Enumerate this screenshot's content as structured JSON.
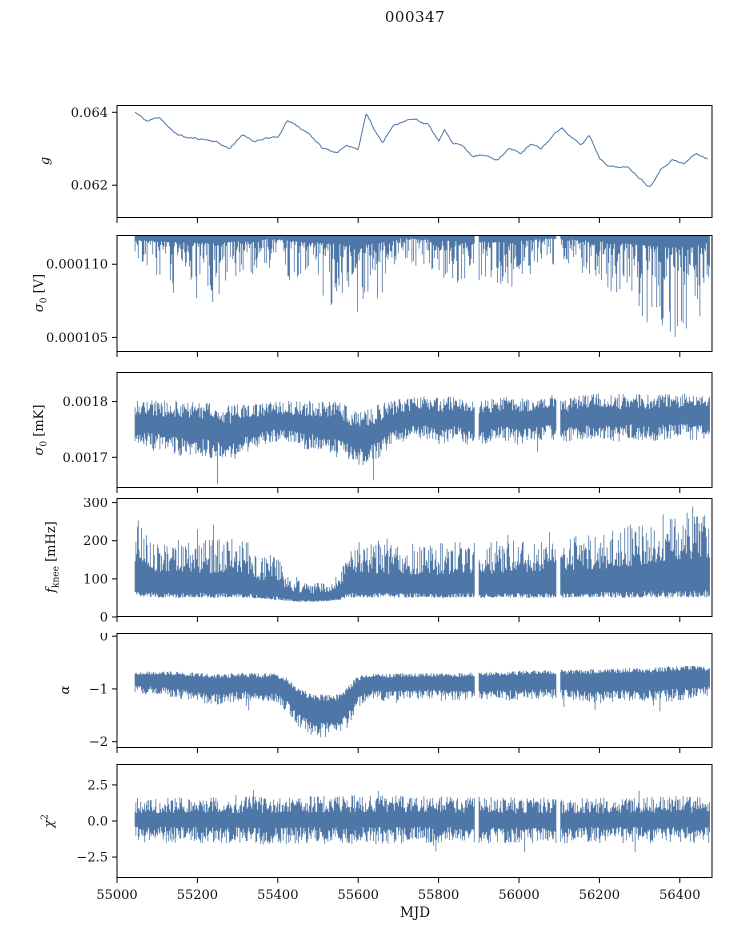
{
  "chart_data": {
    "type": "line",
    "title": "000347",
    "xlabel": "MJD",
    "line_color": "#4e76a6",
    "axis_color": "#000000",
    "xlim": [
      55000,
      56480
    ],
    "xticks": [
      {
        "v": 55000,
        "label": "55000"
      },
      {
        "v": 55200,
        "label": "55200"
      },
      {
        "v": 55400,
        "label": "55400"
      },
      {
        "v": 55600,
        "label": "55600"
      },
      {
        "v": 55800,
        "label": "55800"
      },
      {
        "v": 56000,
        "label": "56000"
      },
      {
        "v": 56200,
        "label": "56200"
      },
      {
        "v": 56400,
        "label": "56400"
      }
    ],
    "gaps": [
      [
        55890,
        55900
      ],
      [
        56092,
        56102
      ]
    ],
    "panels": [
      {
        "id": "g",
        "ylabel_main": "g",
        "ylabel_sub": "",
        "ylabel_sup": "",
        "ylabel_unit": "",
        "ylim": [
          0.0611,
          0.0642
        ],
        "yticks": [
          {
            "v": 0.062,
            "label": "0.062"
          },
          {
            "v": 0.064,
            "label": "0.064"
          }
        ],
        "use_gaps": false,
        "series": {
          "kind": "line",
          "seed": 11,
          "noise": 5e-05,
          "x": [
            55045,
            55075,
            55105,
            55140,
            55175,
            55210,
            55245,
            55280,
            55310,
            55340,
            55370,
            55400,
            55425,
            55450,
            55480,
            55510,
            55545,
            55575,
            55600,
            55620,
            55640,
            55660,
            55685,
            55715,
            55745,
            55775,
            55800,
            55815,
            55835,
            55860,
            55885,
            55915,
            55945,
            55975,
            56005,
            56030,
            56055,
            56080,
            56105,
            56130,
            56155,
            56175,
            56200,
            56225,
            56250,
            56275,
            56300,
            56325,
            56350,
            56380,
            56410,
            56440,
            56470
          ],
          "y": [
            0.064,
            0.06375,
            0.06388,
            0.06345,
            0.0633,
            0.06327,
            0.0632,
            0.063,
            0.06338,
            0.0632,
            0.0633,
            0.0633,
            0.06378,
            0.0636,
            0.0634,
            0.06302,
            0.0629,
            0.06308,
            0.063,
            0.06398,
            0.06352,
            0.06318,
            0.0636,
            0.06378,
            0.0638,
            0.06365,
            0.0632,
            0.0635,
            0.06318,
            0.06308,
            0.0628,
            0.06282,
            0.0627,
            0.063,
            0.06288,
            0.06312,
            0.063,
            0.0633,
            0.0636,
            0.0633,
            0.0631,
            0.06338,
            0.06275,
            0.06252,
            0.0625,
            0.06247,
            0.0622,
            0.06195,
            0.0624,
            0.0627,
            0.06258,
            0.06288,
            0.0627
          ]
        }
      },
      {
        "id": "sigma0_V",
        "ylabel_main": "σ",
        "ylabel_sub": "0",
        "ylabel_sup": "",
        "ylabel_unit": " [V]",
        "ylim": [
          0.000104,
          0.000112
        ],
        "yticks": [
          {
            "v": 0.000105,
            "label": "0.000105"
          },
          {
            "v": 0.00011,
            "label": "0.000110"
          }
        ],
        "use_gaps": true,
        "series": {
          "kind": "top_spikes",
          "seed": 22,
          "top": 0.000112,
          "depth_bias": [
            0.12,
            0.88,
            2.4
          ],
          "spike_prob": 0.015,
          "spike_scale": 0.15,
          "x": [
            55045,
            55090,
            55140,
            55190,
            55240,
            55290,
            55330,
            55370,
            55410,
            55440,
            55470,
            55510,
            55560,
            55610,
            55650,
            55690,
            55730,
            55770,
            55810,
            55850,
            55890,
            55905,
            55950,
            56000,
            56040,
            56080,
            56110,
            56150,
            56190,
            56230,
            56270,
            56310,
            56350,
            56390,
            56420,
            56450,
            56475
          ],
          "min": [
            0.0001092,
            0.0001087,
            0.000108,
            0.0001076,
            0.0001073,
            0.0001082,
            0.000109,
            0.0001097,
            0.0001094,
            0.0001085,
            0.0001079,
            0.0001074,
            0.0001069,
            0.0001067,
            0.0001073,
            0.0001098,
            0.0001101,
            0.0001095,
            0.0001088,
            0.0001085,
            0.0001082,
            0.0001082,
            0.000108,
            0.0001085,
            0.0001094,
            0.00011,
            0.0001098,
            0.0001091,
            0.0001086,
            0.000108,
            0.0001072,
            0.0001062,
            0.0001053,
            0.0001049,
            0.0001052,
            0.0001063,
            0.0001078
          ]
        }
      },
      {
        "id": "sigma0_mK",
        "ylabel_main": "σ",
        "ylabel_sub": "0",
        "ylabel_sup": "",
        "ylabel_unit": " [mK]",
        "ylim": [
          0.001645,
          0.001853
        ],
        "yticks": [
          {
            "v": 0.0017,
            "label": "0.0017"
          },
          {
            "v": 0.0018,
            "label": "0.0018"
          }
        ],
        "use_gaps": true,
        "series": {
          "kind": "band",
          "seed": 33,
          "hi_bias": [
            0.35,
            0.65,
            1.1
          ],
          "lo_bias": [
            0.35,
            0.65,
            1.1
          ],
          "spike_prob": 0.02,
          "spike_scale": 0.9,
          "spike_dir": -1,
          "x": [
            55045,
            55100,
            55160,
            55220,
            55280,
            55320,
            55360,
            55420,
            55470,
            55520,
            55560,
            55600,
            55640,
            55680,
            55720,
            55760,
            55800,
            55840,
            55880,
            55920,
            55960,
            56000,
            56040,
            56080,
            56120,
            56160,
            56200,
            56240,
            56280,
            56320,
            56360,
            56400,
            56440,
            56475
          ],
          "center": [
            0.001762,
            0.001758,
            0.001752,
            0.00175,
            0.001742,
            0.001752,
            0.00176,
            0.001765,
            0.001758,
            0.001755,
            0.001748,
            0.001732,
            0.001742,
            0.00176,
            0.001768,
            0.001772,
            0.001765,
            0.00177,
            0.001762,
            0.001765,
            0.00177,
            0.001765,
            0.00177,
            0.001772,
            0.001768,
            0.001772,
            0.001775,
            0.00177,
            0.001774,
            0.00177,
            0.001773,
            0.001775,
            0.001772,
            0.001774
          ],
          "amp": [
            4e-05,
            4.4e-05,
            5e-05,
            5e-05,
            5.2e-05,
            4.4e-05,
            3.8e-05,
            3.6e-05,
            4.4e-05,
            4.8e-05,
            5.2e-05,
            5e-05,
            5e-05,
            4.2e-05,
            3.8e-05,
            3.8e-05,
            4.2e-05,
            4e-05,
            4.2e-05,
            4e-05,
            4e-05,
            4.4e-05,
            4e-05,
            4e-05,
            4e-05,
            4.2e-05,
            4e-05,
            4.4e-05,
            4e-05,
            4.4e-05,
            4.2e-05,
            4e-05,
            4.2e-05,
            4e-05
          ]
        }
      },
      {
        "id": "fknee",
        "ylabel_main": "f",
        "ylabel_sub": "knee",
        "ylabel_sup": "",
        "ylabel_unit": " [mHz]",
        "ylim": [
          0,
          312
        ],
        "yticks": [
          {
            "v": 0,
            "label": "0"
          },
          {
            "v": 100,
            "label": "100"
          },
          {
            "v": 200,
            "label": "200"
          },
          {
            "v": 300,
            "label": "300"
          }
        ],
        "use_gaps": true,
        "series": {
          "kind": "range_band",
          "seed": 44,
          "lo_bias": [
            0,
            0.08,
            2
          ],
          "hi_bias": [
            0.42,
            0.58,
            1.35
          ],
          "spike_prob": 0.035,
          "spike_scale": 0.45,
          "x": [
            55045,
            55090,
            55140,
            55190,
            55240,
            55290,
            55330,
            55360,
            55395,
            55425,
            55455,
            55490,
            55525,
            55555,
            55575,
            55610,
            55660,
            55710,
            55760,
            55810,
            55860,
            55910,
            55960,
            56010,
            56060,
            56110,
            56160,
            56210,
            56260,
            56310,
            56360,
            56410,
            56450,
            56475
          ],
          "low": [
            55,
            52,
            50,
            52,
            50,
            52,
            50,
            48,
            45,
            42,
            40,
            40,
            42,
            45,
            52,
            50,
            52,
            50,
            52,
            50,
            52,
            50,
            52,
            50,
            52,
            50,
            52,
            52,
            50,
            52,
            50,
            52,
            52,
            52
          ],
          "high": [
            250,
            205,
            210,
            200,
            205,
            210,
            195,
            160,
            165,
            110,
            95,
            90,
            92,
            120,
            205,
            200,
            195,
            200,
            190,
            195,
            200,
            195,
            205,
            215,
            205,
            215,
            220,
            230,
            240,
            255,
            270,
            285,
            295,
            295
          ]
        }
      },
      {
        "id": "alpha",
        "ylabel_main": "α",
        "ylabel_sub": "",
        "ylabel_sup": "",
        "ylabel_unit": "",
        "ylim": [
          -2.12,
          0.06
        ],
        "yticks": [
          {
            "v": -2,
            "label": "−2"
          },
          {
            "v": -1,
            "label": "−1"
          },
          {
            "v": 0,
            "label": "0"
          }
        ],
        "use_gaps": true,
        "series": {
          "kind": "band",
          "seed": 55,
          "hi_bias": [
            0.7,
            0.3,
            1.0
          ],
          "lo_bias": [
            0.3,
            0.7,
            1.3
          ],
          "spike_prob": 0.03,
          "spike_scale": 0.8,
          "spike_dir": -1,
          "x": [
            55045,
            55120,
            55200,
            55260,
            55310,
            55350,
            55390,
            55420,
            55450,
            55480,
            55510,
            55545,
            55570,
            55600,
            55630,
            55670,
            55720,
            55780,
            55840,
            55900,
            55960,
            56020,
            56080,
            56140,
            56200,
            56260,
            56320,
            56380,
            56430,
            56475
          ],
          "center": [
            -0.88,
            -0.9,
            -0.97,
            -1.02,
            -0.95,
            -1.0,
            -0.98,
            -1.1,
            -1.35,
            -1.48,
            -1.52,
            -1.5,
            -1.38,
            -1.05,
            -0.95,
            -0.97,
            -0.95,
            -0.94,
            -0.96,
            -0.95,
            -0.95,
            -0.93,
            -0.92,
            -0.93,
            -0.95,
            -0.92,
            -0.93,
            -0.9,
            -0.88,
            -0.87
          ],
          "amp": [
            0.2,
            0.24,
            0.28,
            0.3,
            0.26,
            0.3,
            0.28,
            0.33,
            0.38,
            0.4,
            0.42,
            0.4,
            0.4,
            0.3,
            0.24,
            0.26,
            0.25,
            0.24,
            0.26,
            0.27,
            0.28,
            0.28,
            0.28,
            0.3,
            0.33,
            0.32,
            0.33,
            0.34,
            0.32,
            0.28
          ]
        }
      },
      {
        "id": "chi2",
        "ylabel_main": "χ",
        "ylabel_sub": "",
        "ylabel_sup": "2",
        "ylabel_unit": "",
        "ylim": [
          -3.95,
          3.95
        ],
        "yticks": [
          {
            "v": -2.5,
            "label": "−2.5"
          },
          {
            "v": 0,
            "label": "0.0"
          },
          {
            "v": 2.5,
            "label": "2.5"
          }
        ],
        "use_gaps": true,
        "series": {
          "kind": "band",
          "seed": 66,
          "hi_bias": [
            0.3,
            0.7,
            1.1
          ],
          "lo_bias": [
            0.3,
            0.7,
            1.1
          ],
          "spike_prob": 0.05,
          "spike_scale": 0.55,
          "spike_dir": 0,
          "x": [
            55045,
            55200,
            55400,
            55600,
            55800,
            56000,
            56200,
            56400,
            56475
          ],
          "center": [
            0.05,
            0.08,
            0.05,
            0.1,
            0.08,
            0.05,
            0.05,
            0.08,
            0.05
          ],
          "amp": [
            1.55,
            1.6,
            1.65,
            1.7,
            1.65,
            1.6,
            1.6,
            1.65,
            1.6
          ]
        }
      }
    ]
  }
}
